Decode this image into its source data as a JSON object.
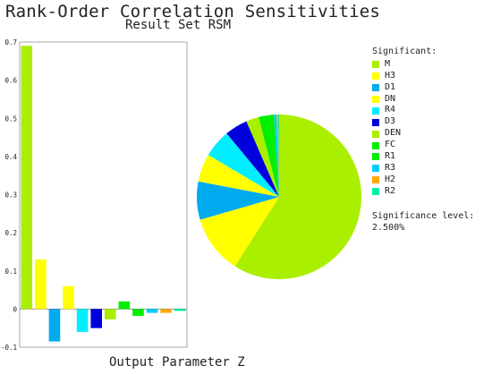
{
  "chart_data": {
    "type": "bar",
    "title": "Rank-Order Correlation Sensitivities",
    "subtitle": "Result Set RSM",
    "xlabel": "Output Parameter Z",
    "ylim": [
      -0.1,
      0.7
    ],
    "yticks": [
      "0.7",
      "0.6",
      "0.5",
      "0.4",
      "0.3",
      "0.2",
      "0.1",
      "0",
      "-0.1"
    ],
    "categories": [
      "M",
      "H3",
      "D1",
      "DN",
      "R4",
      "D3",
      "DEN",
      "FC",
      "R1",
      "R3",
      "H2",
      "R2"
    ],
    "values": [
      0.69,
      0.13,
      -0.085,
      0.06,
      -0.06,
      -0.05,
      -0.027,
      0.02,
      -0.018,
      -0.01,
      -0.01,
      -0.005
    ],
    "colors": [
      "#aaee00",
      "#ffff00",
      "#00aaee",
      "#ffff00",
      "#00eeff",
      "#0000dd",
      "#aaee00",
      "#00ee00",
      "#00ee00",
      "#00ccff",
      "#ffaa00",
      "#00eeaa"
    ],
    "pie_slices": [
      {
        "category": "M",
        "fraction": 0.59,
        "color": "#aaee00"
      },
      {
        "category": "H3",
        "fraction": 0.115,
        "color": "#ffff00"
      },
      {
        "category": "D1",
        "fraction": 0.075,
        "color": "#00aaee"
      },
      {
        "category": "DN",
        "fraction": 0.055,
        "color": "#ffff00"
      },
      {
        "category": "R4",
        "fraction": 0.055,
        "color": "#00eeff"
      },
      {
        "category": "D3",
        "fraction": 0.045,
        "color": "#0000dd"
      },
      {
        "category": "DEN",
        "fraction": 0.025,
        "color": "#aaee00"
      },
      {
        "category": "FC",
        "fraction": 0.02,
        "color": "#00ee00"
      },
      {
        "category": "R1",
        "fraction": 0.01,
        "color": "#00ee00"
      },
      {
        "category": "R3",
        "fraction": 0.005,
        "color": "#00ccff"
      },
      {
        "category": "H2",
        "fraction": 0.003,
        "color": "#ffaa00"
      },
      {
        "category": "R2",
        "fraction": 0.002,
        "color": "#00eeaa"
      }
    ],
    "legend_title": "Significant:",
    "significance_label": "Significance level:",
    "significance_value": "2.500%"
  }
}
